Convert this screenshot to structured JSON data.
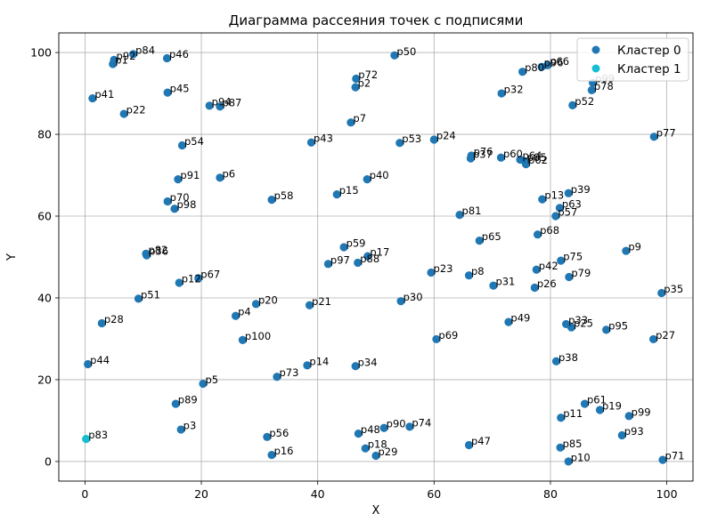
{
  "chart_data": {
    "type": "scatter",
    "title": "Диаграмма рассеяния точек с подписями",
    "xlabel": "X",
    "ylabel": "Y",
    "xlim": [
      -4.5,
      104.5
    ],
    "ylim": [
      -4.8,
      104.8
    ],
    "xticks": [
      0,
      20,
      40,
      60,
      80,
      100
    ],
    "yticks": [
      0,
      20,
      40,
      60,
      80,
      100
    ],
    "grid": true,
    "legend_position": "top-right",
    "colors": {
      "Кластер 0": "#1f77b4",
      "Кластер 1": "#17becf"
    },
    "series": [
      {
        "name": "Кластер 0",
        "points": [
          {
            "label": "p84",
            "x": 8.3,
            "y": 99.6
          },
          {
            "label": "p92",
            "x": 5.0,
            "y": 98.2
          },
          {
            "label": "p1",
            "x": 4.8,
            "y": 97.2
          },
          {
            "label": "p46",
            "x": 14.1,
            "y": 98.6
          },
          {
            "label": "p41",
            "x": 1.3,
            "y": 88.8
          },
          {
            "label": "p45",
            "x": 14.2,
            "y": 90.2
          },
          {
            "label": "p22",
            "x": 6.7,
            "y": 85.0
          },
          {
            "label": "p94",
            "x": 21.4,
            "y": 87.0
          },
          {
            "label": "p87",
            "x": 23.2,
            "y": 86.8
          },
          {
            "label": "p54",
            "x": 16.7,
            "y": 77.3
          },
          {
            "label": "p91",
            "x": 16.0,
            "y": 69.0
          },
          {
            "label": "p6",
            "x": 23.2,
            "y": 69.4
          },
          {
            "label": "p70",
            "x": 14.2,
            "y": 63.6
          },
          {
            "label": "p98",
            "x": 15.4,
            "y": 61.8
          },
          {
            "label": "p82",
            "x": 10.5,
            "y": 50.8
          },
          {
            "label": "p36",
            "x": 10.6,
            "y": 50.4
          },
          {
            "label": "p12",
            "x": 16.2,
            "y": 43.7
          },
          {
            "label": "p67",
            "x": 19.5,
            "y": 44.8
          },
          {
            "label": "p51",
            "x": 9.2,
            "y": 39.8
          },
          {
            "label": "p28",
            "x": 2.9,
            "y": 33.8
          },
          {
            "label": "p44",
            "x": 0.5,
            "y": 23.8
          },
          {
            "label": "p89",
            "x": 15.6,
            "y": 14.1
          },
          {
            "label": "p5",
            "x": 20.3,
            "y": 19.0
          },
          {
            "label": "p3",
            "x": 16.5,
            "y": 7.8
          },
          {
            "label": "p4",
            "x": 25.9,
            "y": 35.6
          },
          {
            "label": "p100",
            "x": 27.1,
            "y": 29.7
          },
          {
            "label": "p20",
            "x": 29.4,
            "y": 38.5
          },
          {
            "label": "p58",
            "x": 32.1,
            "y": 64.0
          },
          {
            "label": "p73",
            "x": 33.0,
            "y": 20.7
          },
          {
            "label": "p56",
            "x": 31.3,
            "y": 6.0
          },
          {
            "label": "p16",
            "x": 32.1,
            "y": 1.6
          },
          {
            "label": "p43",
            "x": 38.9,
            "y": 78.0
          },
          {
            "label": "p21",
            "x": 38.6,
            "y": 38.2
          },
          {
            "label": "p14",
            "x": 38.2,
            "y": 23.5
          },
          {
            "label": "p72",
            "x": 46.6,
            "y": 93.6
          },
          {
            "label": "p2",
            "x": 46.5,
            "y": 91.5
          },
          {
            "label": "p50",
            "x": 53.2,
            "y": 99.3
          },
          {
            "label": "p7",
            "x": 45.7,
            "y": 82.9
          },
          {
            "label": "p53",
            "x": 54.1,
            "y": 77.9
          },
          {
            "label": "p40",
            "x": 48.5,
            "y": 69.0
          },
          {
            "label": "p15",
            "x": 43.3,
            "y": 65.3
          },
          {
            "label": "p59",
            "x": 44.5,
            "y": 52.4
          },
          {
            "label": "p17",
            "x": 48.6,
            "y": 50.2
          },
          {
            "label": "p97",
            "x": 41.8,
            "y": 48.3
          },
          {
            "label": "p88",
            "x": 46.9,
            "y": 48.6
          },
          {
            "label": "p30",
            "x": 54.3,
            "y": 39.2
          },
          {
            "label": "p34",
            "x": 46.5,
            "y": 23.3
          },
          {
            "label": "p90",
            "x": 51.4,
            "y": 8.2
          },
          {
            "label": "p74",
            "x": 55.8,
            "y": 8.5
          },
          {
            "label": "p48",
            "x": 47.0,
            "y": 6.8
          },
          {
            "label": "p18",
            "x": 48.2,
            "y": 3.2
          },
          {
            "label": "p29",
            "x": 50.0,
            "y": 1.4
          },
          {
            "label": "p24",
            "x": 60.0,
            "y": 78.7
          },
          {
            "label": "p81",
            "x": 64.4,
            "y": 60.3
          },
          {
            "label": "p23",
            "x": 59.5,
            "y": 46.2
          },
          {
            "label": "p69",
            "x": 60.4,
            "y": 29.9
          },
          {
            "label": "p76",
            "x": 66.4,
            "y": 74.8
          },
          {
            "label": "p37",
            "x": 66.3,
            "y": 74.1
          },
          {
            "label": "p65",
            "x": 67.8,
            "y": 54.0
          },
          {
            "label": "p8",
            "x": 66.0,
            "y": 45.5
          },
          {
            "label": "p47",
            "x": 66.0,
            "y": 4.0
          },
          {
            "label": "p32",
            "x": 71.6,
            "y": 90.0
          },
          {
            "label": "p60",
            "x": 71.5,
            "y": 74.3
          },
          {
            "label": "p31",
            "x": 70.2,
            "y": 43.0
          },
          {
            "label": "p49",
            "x": 72.8,
            "y": 34.1
          },
          {
            "label": "p80",
            "x": 75.2,
            "y": 95.3
          },
          {
            "label": "p66",
            "x": 79.5,
            "y": 96.9
          },
          {
            "label": "p96",
            "x": 78.5,
            "y": 96.5
          },
          {
            "label": "p64",
            "x": 74.8,
            "y": 73.8
          },
          {
            "label": "p85",
            "x": 75.6,
            "y": 73.4
          },
          {
            "label": "p62",
            "x": 75.8,
            "y": 72.7
          },
          {
            "label": "p13",
            "x": 78.6,
            "y": 64.1
          },
          {
            "label": "p39",
            "x": 83.1,
            "y": 65.6
          },
          {
            "label": "p63",
            "x": 81.6,
            "y": 62.0
          },
          {
            "label": "p57",
            "x": 80.9,
            "y": 60.0
          },
          {
            "label": "p68",
            "x": 77.8,
            "y": 55.5
          },
          {
            "label": "p75",
            "x": 81.8,
            "y": 49.1
          },
          {
            "label": "p42",
            "x": 77.6,
            "y": 46.9
          },
          {
            "label": "p79",
            "x": 83.2,
            "y": 45.1
          },
          {
            "label": "p26",
            "x": 77.3,
            "y": 42.5
          },
          {
            "label": "p33",
            "x": 82.7,
            "y": 33.6
          },
          {
            "label": "p25",
            "x": 83.6,
            "y": 32.8
          },
          {
            "label": "p38",
            "x": 81.0,
            "y": 24.5
          },
          {
            "label": "p61",
            "x": 85.9,
            "y": 14.1
          },
          {
            "label": "p11",
            "x": 81.8,
            "y": 10.7
          },
          {
            "label": "p19",
            "x": 88.5,
            "y": 12.6
          },
          {
            "label": "p85",
            "x": 81.7,
            "y": 3.4
          },
          {
            "label": "p10",
            "x": 83.1,
            "y": 0.0
          },
          {
            "label": "p78",
            "x": 87.1,
            "y": 90.8
          },
          {
            "label": "p99",
            "x": 87.3,
            "y": 92.6
          },
          {
            "label": "p52",
            "x": 83.8,
            "y": 87.1
          },
          {
            "label": "p9",
            "x": 93.0,
            "y": 51.5
          },
          {
            "label": "p95",
            "x": 89.6,
            "y": 32.2
          },
          {
            "label": "p99",
            "x": 93.5,
            "y": 11.1
          },
          {
            "label": "p93",
            "x": 92.3,
            "y": 6.4
          },
          {
            "label": "p77",
            "x": 97.8,
            "y": 79.4
          },
          {
            "label": "p35",
            "x": 99.1,
            "y": 41.2
          },
          {
            "label": "p27",
            "x": 97.7,
            "y": 29.9
          },
          {
            "label": "p71",
            "x": 99.3,
            "y": 0.4
          }
        ]
      },
      {
        "name": "Кластер 1",
        "points": [
          {
            "label": "p83",
            "x": 0.2,
            "y": 5.5
          }
        ]
      }
    ]
  }
}
